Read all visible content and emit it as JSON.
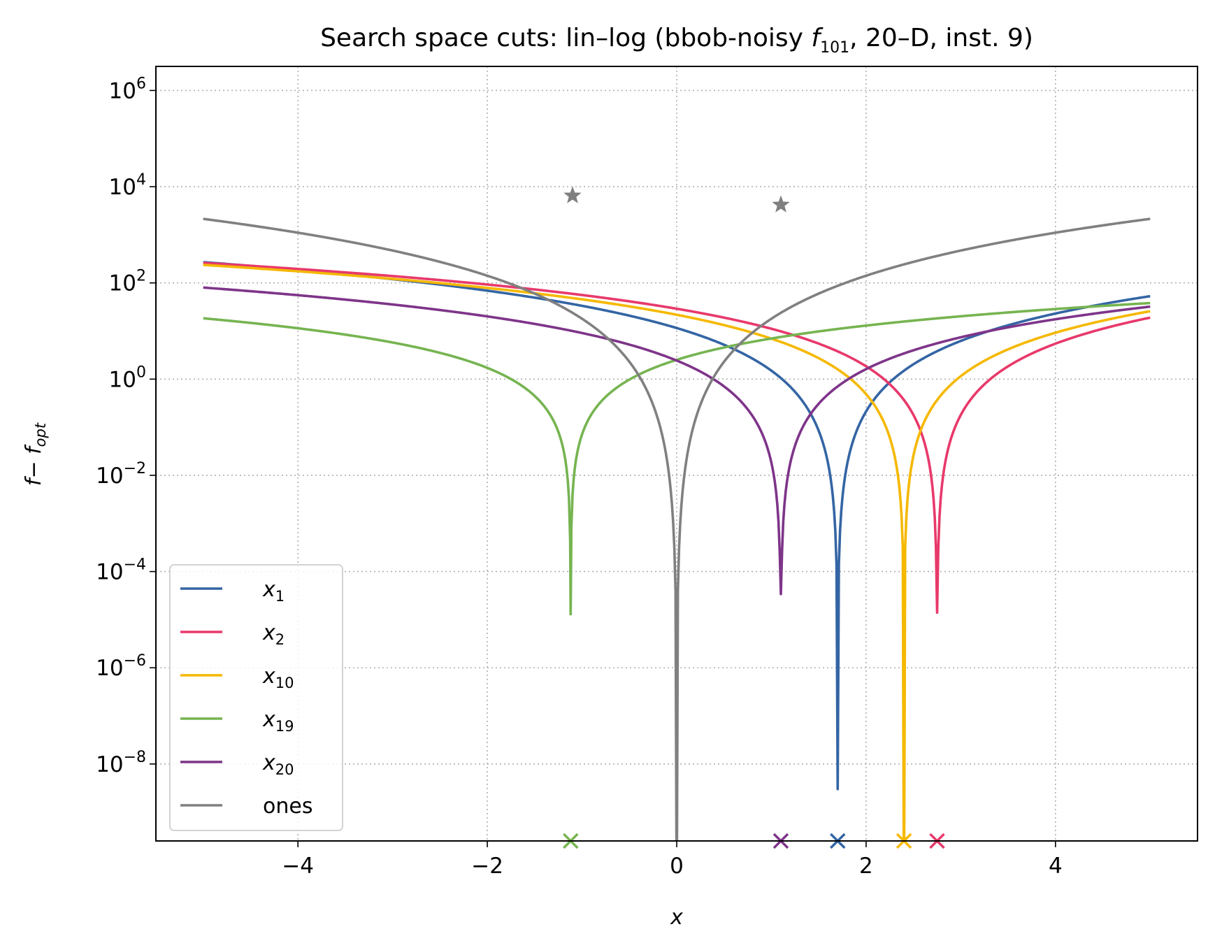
{
  "chart_data": {
    "type": "line",
    "title": {
      "prefix": "Search space cuts: lin–log (bbob-noisy ",
      "func_symbol": "f",
      "func_index": "101",
      "suffix": ", 20–D, inst. 9)"
    },
    "xlabel": "x",
    "ylabel": {
      "main": "f",
      "mid": "− ",
      "sub_base": "f",
      "sub": "opt"
    },
    "xscale": "linear",
    "yscale": "log",
    "xlim": [
      -5.5,
      5.5
    ],
    "ylim_log10": [
      -9.6,
      6.5
    ],
    "x_ticks": [
      {
        "value": -4,
        "label": "−4"
      },
      {
        "value": -2,
        "label": "−2"
      },
      {
        "value": 0,
        "label": "0"
      },
      {
        "value": 2,
        "label": "2"
      },
      {
        "value": 4,
        "label": "4"
      }
    ],
    "y_ticks": [
      {
        "exp": 6,
        "base": "10",
        "sup": "6"
      },
      {
        "exp": 4,
        "base": "10",
        "sup": "4"
      },
      {
        "exp": 2,
        "base": "10",
        "sup": "2"
      },
      {
        "exp": 0,
        "base": "10",
        "sup": "0"
      },
      {
        "exp": -2,
        "base": "10",
        "sup": "−2"
      },
      {
        "exp": -4,
        "base": "10",
        "sup": "−4"
      },
      {
        "exp": -6,
        "base": "10",
        "sup": "−6"
      },
      {
        "exp": -8,
        "base": "10",
        "sup": "−8"
      }
    ],
    "grid": true,
    "legend_position": "lower-left",
    "series": [
      {
        "name": "x",
        "sub": "1",
        "color": "#3465a4",
        "x_opt": 1.7,
        "a": 3.4,
        "p": 2.3,
        "ymin": 3e-09
      },
      {
        "name": "x",
        "sub": "2",
        "color": "#e8396b",
        "x_opt": 2.75,
        "a": 3.4,
        "p": 2.12,
        "ymin": 1.4e-05
      },
      {
        "name": "x",
        "sub": "10",
        "color": "#f5b800",
        "x_opt": 2.4,
        "a": 3.4,
        "p": 2.12,
        "ymin": 1e-12
      },
      {
        "name": "x",
        "sub": "19",
        "color": "#76b451",
        "x_opt": -1.12,
        "a": 2.1,
        "p": 1.6,
        "ymin": 1.3e-05
      },
      {
        "name": "x",
        "sub": "20",
        "color": "#7e3589",
        "x_opt": 1.1,
        "a": 2.0,
        "p": 2.04,
        "ymin": 3.4e-05
      },
      {
        "name": "ones",
        "sub": "",
        "color": "#808080",
        "x_opt": 0,
        "a": 18,
        "p": 2.97,
        "ymin": 1e-12
      }
    ],
    "ones_markers": [
      {
        "x": -1.1,
        "y": 6500
      },
      {
        "x": 1.1,
        "y": 4200
      }
    ],
    "optimum_markers": [
      {
        "x": -1.12,
        "color": "#76b451"
      },
      {
        "x": 1.1,
        "color": "#7e3589"
      },
      {
        "x": 1.7,
        "color": "#3465a4"
      },
      {
        "x": 2.4,
        "color": "#f5b800"
      },
      {
        "x": 2.75,
        "color": "#e8396b"
      }
    ]
  }
}
